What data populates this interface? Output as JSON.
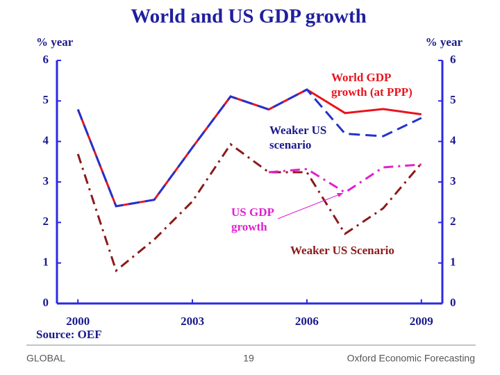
{
  "chart_data": {
    "type": "line",
    "title": "World and US GDP growth",
    "ylabel": "% year",
    "y2label": "% year",
    "source": "Source: OEF",
    "x": [
      2000,
      2001,
      2002,
      2003,
      2004,
      2005,
      2006,
      2007,
      2008,
      2009
    ],
    "xlim": [
      1999.45,
      2009.55
    ],
    "xticks": [
      2000,
      2003,
      2006,
      2009
    ],
    "ylim": [
      0,
      6
    ],
    "yticks": [
      0,
      1,
      2,
      3,
      4,
      5,
      6
    ],
    "y2lim": [
      0,
      6
    ],
    "y2ticks": [
      0,
      1,
      2,
      3,
      4,
      5,
      6
    ],
    "axis_color": "#2a2ae0",
    "series": [
      {
        "color": "#e8141c",
        "dash": "solid",
        "values": [
          4.79,
          2.4,
          2.56,
          3.85,
          5.11,
          4.79,
          5.28,
          4.7,
          4.8,
          4.67
        ]
      },
      {
        "color": "#2233cc",
        "dash": "dashed",
        "values": [
          4.79,
          2.4,
          2.56,
          3.85,
          5.11,
          4.79,
          5.28,
          4.19,
          4.13,
          4.58
        ]
      },
      {
        "color": "#8b1a1a",
        "dash": "dashdot",
        "values": [
          3.69,
          0.81,
          1.58,
          2.52,
          3.93,
          3.24,
          3.24,
          1.72,
          2.35,
          3.46
        ]
      },
      {
        "color": "#e020d0",
        "dash": "dashdot",
        "values": [
          null,
          null,
          null,
          null,
          null,
          3.24,
          3.32,
          2.74,
          3.36,
          3.43
        ]
      }
    ],
    "annotations": [
      {
        "lines": [
          "World GDP",
          "growth (at PPP)"
        ],
        "color": "#e8141c"
      },
      {
        "lines": [
          "Weaker US",
          "scenario"
        ],
        "color": "#1a1a8c"
      },
      {
        "lines": [
          "US GDP",
          "growth"
        ],
        "color": "#e020d0"
      },
      {
        "lines": [
          "Weaker US Scenario"
        ],
        "color": "#8b1a1a"
      }
    ]
  },
  "footer": {
    "left": "GLOBAL",
    "center": "19",
    "right": "Oxford Economic Forecasting"
  }
}
